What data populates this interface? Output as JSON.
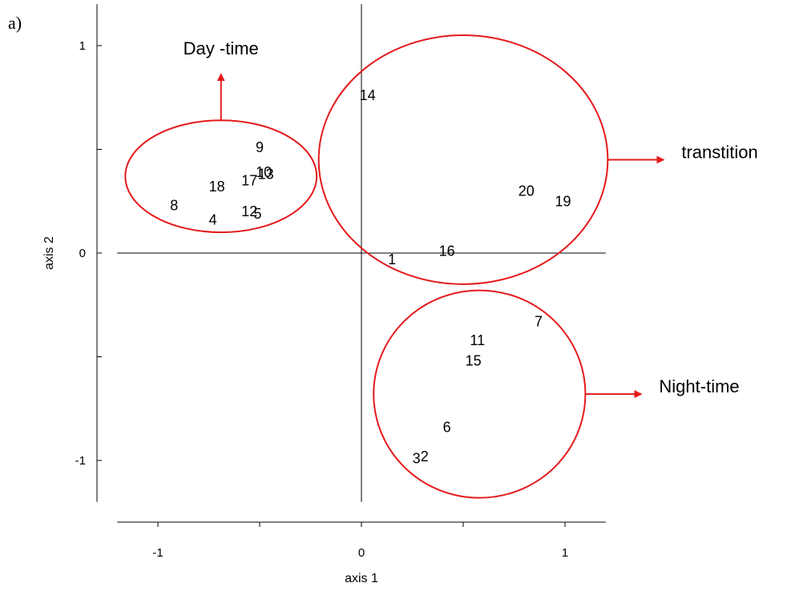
{
  "panel_label": "a)",
  "chart_data": {
    "type": "scatter",
    "title": "",
    "xlabel": "axis 1",
    "ylabel": "axis 2",
    "xlim": [
      -1.2,
      1.2
    ],
    "ylim": [
      -1.2,
      1.2
    ],
    "x_ticks": [
      -1,
      -0.5,
      0,
      0.5,
      1
    ],
    "x_tick_labels": [
      "-1",
      "",
      "0",
      "",
      "1"
    ],
    "y_ticks": [
      -1,
      -0.5,
      0,
      0.5,
      1
    ],
    "y_tick_labels": [
      "-1",
      "",
      "0",
      "",
      "1"
    ],
    "grid": false,
    "reference_lines": {
      "x": 0,
      "y": 0
    },
    "points": [
      {
        "label": "1",
        "x": 0.15,
        "y": -0.03
      },
      {
        "label": "2",
        "x": 0.31,
        "y": -0.98
      },
      {
        "label": "3",
        "x": 0.27,
        "y": -0.99
      },
      {
        "label": "4",
        "x": -0.73,
        "y": 0.16
      },
      {
        "label": "5",
        "x": -0.51,
        "y": 0.19
      },
      {
        "label": "6",
        "x": 0.42,
        "y": -0.84
      },
      {
        "label": "7",
        "x": 0.87,
        "y": -0.33
      },
      {
        "label": "8",
        "x": -0.92,
        "y": 0.23
      },
      {
        "label": "9",
        "x": -0.5,
        "y": 0.51
      },
      {
        "label": "10",
        "x": -0.48,
        "y": 0.39
      },
      {
        "label": "11",
        "x": 0.57,
        "y": -0.42
      },
      {
        "label": "12",
        "x": -0.55,
        "y": 0.2
      },
      {
        "label": "13",
        "x": -0.47,
        "y": 0.38
      },
      {
        "label": "14",
        "x": 0.03,
        "y": 0.76
      },
      {
        "label": "15",
        "x": 0.55,
        "y": -0.52
      },
      {
        "label": "16",
        "x": 0.42,
        "y": 0.01
      },
      {
        "label": "17",
        "x": -0.55,
        "y": 0.35
      },
      {
        "label": "18",
        "x": -0.71,
        "y": 0.32
      },
      {
        "label": "19",
        "x": 0.99,
        "y": 0.25
      },
      {
        "label": "20",
        "x": 0.81,
        "y": 0.3
      }
    ],
    "annotations": [
      {
        "text": "Day -time",
        "cx": -0.69,
        "cy": 0.37,
        "rx": 0.47,
        "ry": 0.27,
        "arrow": "up"
      },
      {
        "text": "transtition",
        "cx": 0.5,
        "cy": 0.45,
        "rx": 0.71,
        "ry": 0.6,
        "arrow": "right"
      },
      {
        "text": "Night-time",
        "cx": 0.58,
        "cy": -0.68,
        "rx": 0.52,
        "ry": 0.5,
        "arrow": "right"
      }
    ],
    "annotation_color": "#e41a1c"
  }
}
